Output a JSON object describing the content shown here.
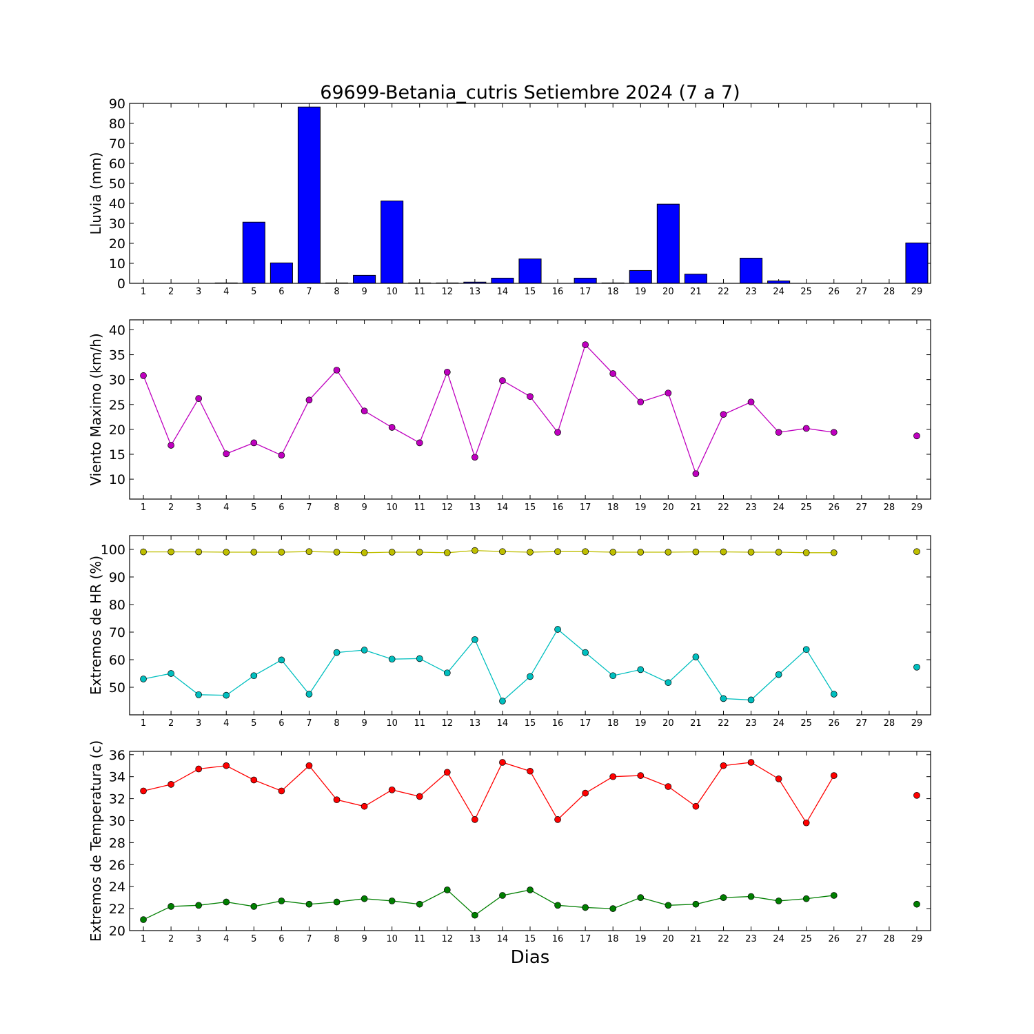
{
  "title": "69699-Betania_cutris Setiembre 2024  (7 a 7)",
  "xlabel": "Dias",
  "chart_data": [
    {
      "type": "bar",
      "ylabel": "Lluvia (mm)",
      "ylim": [
        0,
        90
      ],
      "yticks": [
        0,
        10,
        20,
        30,
        40,
        50,
        60,
        70,
        80,
        90
      ],
      "categories": [
        1,
        2,
        3,
        4,
        5,
        6,
        7,
        8,
        9,
        10,
        11,
        12,
        13,
        14,
        15,
        16,
        17,
        18,
        19,
        20,
        21,
        22,
        23,
        24,
        25,
        26,
        27,
        28,
        29
      ],
      "values": [
        0,
        0,
        0,
        0.2,
        30.6,
        10.2,
        88.2,
        0.2,
        4,
        41.2,
        0.2,
        0.2,
        0.6,
        2.6,
        12.2,
        0,
        2.6,
        0.2,
        6.4,
        39.6,
        4.6,
        0,
        12.6,
        1.2,
        0,
        0,
        null,
        null,
        20.2
      ],
      "color": "#0000ff"
    },
    {
      "type": "line",
      "ylabel": "Viento Maximo (km/h)",
      "ylim": [
        6,
        42
      ],
      "yticks": [
        10,
        15,
        20,
        25,
        30,
        35,
        40
      ],
      "x": [
        1,
        2,
        3,
        4,
        5,
        6,
        7,
        8,
        9,
        10,
        11,
        12,
        13,
        14,
        15,
        16,
        17,
        18,
        19,
        20,
        21,
        22,
        23,
        24,
        25,
        26,
        27,
        28,
        29
      ],
      "series": [
        {
          "values": [
            30.8,
            16.8,
            26.2,
            15.1,
            17.3,
            14.8,
            25.9,
            31.9,
            23.7,
            20.4,
            17.3,
            31.5,
            14.4,
            29.8,
            26.6,
            19.4,
            37,
            31.2,
            25.5,
            27.3,
            11.1,
            23,
            25.5,
            19.4,
            20.2,
            19.4,
            null,
            null,
            18.7
          ],
          "color": "#bf00bf"
        }
      ]
    },
    {
      "type": "line",
      "ylabel": "Extremos de HR (%)",
      "ylim": [
        40,
        105
      ],
      "yticks": [
        50,
        60,
        70,
        80,
        90,
        100
      ],
      "x": [
        1,
        2,
        3,
        4,
        5,
        6,
        7,
        8,
        9,
        10,
        11,
        12,
        13,
        14,
        15,
        16,
        17,
        18,
        19,
        20,
        21,
        22,
        23,
        24,
        25,
        26,
        27,
        28,
        29
      ],
      "series": [
        {
          "values": [
            99.1,
            99.1,
            99.1,
            99,
            99,
            99,
            99.2,
            99,
            98.8,
            99,
            99,
            98.8,
            99.6,
            99.2,
            99,
            99.2,
            99.2,
            99,
            99,
            99,
            99.1,
            99.1,
            99,
            99,
            98.8,
            98.8,
            null,
            null,
            99.2
          ],
          "color": "#bfbf00"
        },
        {
          "values": [
            53,
            55,
            47.3,
            47.1,
            54.2,
            59.9,
            47.5,
            62.6,
            63.5,
            60.2,
            60.4,
            55.2,
            67.3,
            45,
            53.9,
            71,
            62.6,
            54.2,
            56.4,
            51.7,
            61,
            45.9,
            45.4,
            54.6,
            63.7,
            47.5,
            null,
            null,
            57.3
          ],
          "color": "#00bfbf"
        }
      ]
    },
    {
      "type": "line",
      "ylabel": "Extremos de Temperatura (c)",
      "ylim": [
        20,
        36.3
      ],
      "yticks": [
        20,
        22,
        24,
        26,
        28,
        30,
        32,
        34,
        36
      ],
      "x": [
        1,
        2,
        3,
        4,
        5,
        6,
        7,
        8,
        9,
        10,
        11,
        12,
        13,
        14,
        15,
        16,
        17,
        18,
        19,
        20,
        21,
        22,
        23,
        24,
        25,
        26,
        27,
        28,
        29
      ],
      "series": [
        {
          "values": [
            32.7,
            33.3,
            34.7,
            35,
            33.7,
            32.7,
            35,
            31.9,
            31.3,
            32.8,
            32.2,
            34.4,
            30.1,
            35.3,
            34.5,
            30.1,
            32.5,
            34,
            34.1,
            33.1,
            31.3,
            35,
            35.3,
            33.8,
            29.8,
            34.1,
            null,
            null,
            32.3
          ],
          "color": "#ff0000"
        },
        {
          "values": [
            21,
            22.2,
            22.3,
            22.6,
            22.2,
            22.7,
            22.4,
            22.6,
            22.9,
            22.7,
            22.4,
            23.7,
            21.4,
            23.2,
            23.7,
            22.3,
            22.1,
            22,
            23,
            22.3,
            22.4,
            23,
            23.1,
            22.7,
            22.9,
            23.2,
            null,
            null,
            22.4
          ],
          "color": "#007f00"
        }
      ]
    }
  ]
}
